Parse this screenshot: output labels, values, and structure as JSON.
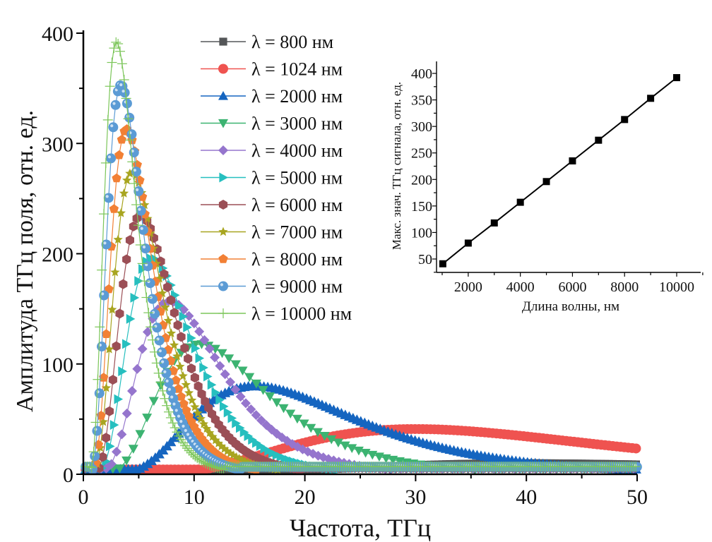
{
  "chart_data": [
    {
      "type": "line",
      "title": "",
      "xlabel": "Частота, ТГц",
      "ylabel": "Амплитуда ТГц поля, отн. ед.",
      "xlim": [
        0,
        50
      ],
      "ylim": [
        0,
        400
      ],
      "x_ticks": [
        0,
        10,
        20,
        30,
        40,
        50
      ],
      "y_ticks": [
        0,
        100,
        200,
        300,
        400
      ],
      "grid": false,
      "legend_position": "top-center",
      "series": [
        {
          "name": "λ = 800 нм",
          "color": "#545658",
          "marker": "square",
          "peak_x": 40.0,
          "peak_y": 10,
          "width": 14.0
        },
        {
          "name": "λ = 1024 нм",
          "color": "#ef5350",
          "marker": "circle",
          "peak_x": 30.0,
          "peak_y": 41,
          "width": 11.0
        },
        {
          "name": "λ = 2000 нм",
          "color": "#1565c0",
          "marker": "triangle-up",
          "peak_x": 15.5,
          "peak_y": 80,
          "width": 5.6
        },
        {
          "name": "λ = 3000 нм",
          "color": "#3cb371",
          "marker": "triangle-down",
          "peak_x": 10.5,
          "peak_y": 118,
          "width": 3.7
        },
        {
          "name": "λ = 4000 нм",
          "color": "#9575cd",
          "marker": "diamond",
          "peak_x": 7.8,
          "peak_y": 157,
          "width": 2.8
        },
        {
          "name": "λ = 5000 нм",
          "color": "#26bfbf",
          "marker": "triangle-right",
          "peak_x": 6.2,
          "peak_y": 196,
          "width": 2.2
        },
        {
          "name": "λ = 6000 нм",
          "color": "#9b4f56",
          "marker": "hexagon",
          "peak_x": 5.2,
          "peak_y": 235,
          "width": 1.85
        },
        {
          "name": "λ = 7000 нм",
          "color": "#a8a520",
          "marker": "star",
          "peak_x": 4.4,
          "peak_y": 274,
          "width": 1.6
        },
        {
          "name": "λ = 8000 нм",
          "color": "#f28035",
          "marker": "pentagon",
          "peak_x": 3.9,
          "peak_y": 313,
          "width": 1.4
        },
        {
          "name": "λ = 9000 нм",
          "color": "#5b9bd5",
          "marker": "sphere",
          "peak_x": 3.4,
          "peak_y": 353,
          "width": 1.25
        },
        {
          "name": "λ = 10000 нм",
          "color": "#7cc65a",
          "marker": "plus",
          "peak_x": 3.0,
          "peak_y": 392,
          "width": 1.1
        }
      ]
    },
    {
      "type": "line",
      "title": "",
      "xlabel": "Длина волны, нм",
      "ylabel": "Макс. знач. ТГц сигнала, отн. ед.",
      "xlim": [
        800,
        11000
      ],
      "ylim": [
        30,
        425
      ],
      "x_ticks": [
        2000,
        4000,
        6000,
        8000,
        10000
      ],
      "y_ticks": [
        50,
        100,
        150,
        200,
        250,
        300,
        350,
        400
      ],
      "grid": false,
      "marker": "square",
      "color": "#000000",
      "x": [
        1024,
        2000,
        3000,
        4000,
        5000,
        6000,
        7000,
        8000,
        9000,
        10000
      ],
      "y": [
        41,
        80,
        118,
        157,
        196,
        235,
        274,
        313,
        353,
        392
      ]
    }
  ]
}
